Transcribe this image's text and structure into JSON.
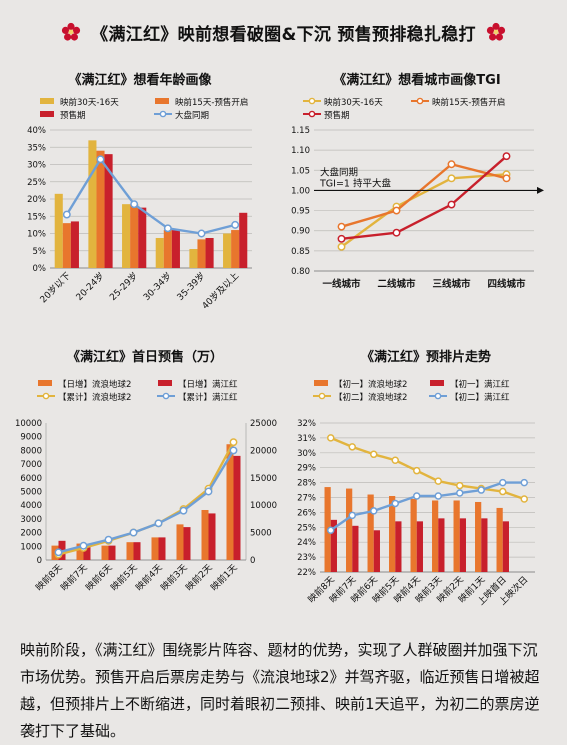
{
  "page": {
    "title": "《满江红》映前想看破圈&下沉 预售预排稳扎稳打",
    "paragraph": "映前阶段，《满江红》围绕影片阵容、题材的优势，实现了人群破圈并加强下沉市场优势。预售开启后票房走势与《流浪地球2》并驾齐驱，临近预售日增被超越，但预排片上不断缩进，同时着眼初二预排、映前1天追平，为初二的票房逆袭打下了基础。",
    "colors": {
      "accent_red": "#c8102e",
      "red": "#c8202c",
      "orange": "#e8762d",
      "yellow": "#e2b43e",
      "blue": "#6f9fd6",
      "bg": "#e9e7e5"
    }
  },
  "chart_data": [
    {
      "id": "age",
      "type": "bar",
      "title": "《满江红》想看年龄画像",
      "categories": [
        "20岁以下",
        "20-24岁",
        "25-29岁",
        "30-34岁",
        "35-39岁",
        "40岁及以上"
      ],
      "series": [
        {
          "name": "映前30天-16天",
          "kind": "bar",
          "color": "#e2b43e",
          "values": [
            21.5,
            37,
            18.5,
            8.7,
            5.5,
            10
          ]
        },
        {
          "name": "映前15天-预售开启",
          "kind": "bar",
          "color": "#e8762d",
          "values": [
            13,
            34,
            18.5,
            11,
            8.3,
            11
          ]
        },
        {
          "name": "预售期",
          "kind": "bar",
          "color": "#c8202c",
          "values": [
            13.5,
            33,
            17.5,
            11,
            8.7,
            16
          ]
        },
        {
          "name": "大盘同期",
          "kind": "line",
          "color": "#6f9fd6",
          "values": [
            15.5,
            31.5,
            18.5,
            11.5,
            10,
            12.5
          ]
        }
      ],
      "ylim": [
        0,
        40
      ],
      "yticks": [
        "0%",
        "5%",
        "10%",
        "15%",
        "20%",
        "25%",
        "30%",
        "35%",
        "40%"
      ],
      "grid": true,
      "legend": "top"
    },
    {
      "id": "tgi",
      "type": "line",
      "title": "《满江红》想看城市画像TGI",
      "categories": [
        "一线城市",
        "二线城市",
        "三线城市",
        "四线城市"
      ],
      "series": [
        {
          "name": "映前30天-16天",
          "color": "#e2b43e",
          "values": [
            0.86,
            0.96,
            1.03,
            1.04
          ]
        },
        {
          "name": "映前15天-预售开启",
          "color": "#e8762d",
          "values": [
            0.91,
            0.95,
            1.065,
            1.03
          ]
        },
        {
          "name": "预售期",
          "color": "#c8202c",
          "values": [
            0.88,
            0.895,
            0.965,
            1.085
          ]
        }
      ],
      "ylim": [
        0.8,
        1.15
      ],
      "yticks": [
        "0.80",
        "0.85",
        "0.90",
        "0.95",
        "1.00",
        "1.05",
        "1.10",
        "1.15"
      ],
      "annotation": [
        "大盘同期",
        "TGI=1 持平大盘"
      ],
      "grid": true,
      "legend": "top"
    },
    {
      "id": "presale",
      "type": "bar",
      "title": "《满江红》首日预售（万）",
      "categories": [
        "映前8天",
        "映前7天",
        "映前6天",
        "映前5天",
        "映前4天",
        "映前3天",
        "映前2天",
        "映前1天"
      ],
      "series": [
        {
          "name": "【日增】流浪地球2",
          "kind": "bar",
          "axis": "left",
          "color": "#e8762d",
          "values": [
            1050,
            1200,
            1050,
            1300,
            1650,
            2600,
            3650,
            8450
          ]
        },
        {
          "name": "【日增】满江红",
          "kind": "bar",
          "axis": "left",
          "color": "#c8202c",
          "values": [
            1400,
            1150,
            1050,
            1300,
            1650,
            2400,
            3400,
            7600
          ]
        },
        {
          "name": "【累计】流浪地球2",
          "kind": "line",
          "axis": "right",
          "color": "#e2b43e",
          "values": [
            1000,
            2200,
            3500,
            5000,
            6700,
            9300,
            13000,
            21500
          ]
        },
        {
          "name": "【累计】满江红",
          "kind": "line",
          "axis": "right",
          "color": "#6f9fd6",
          "values": [
            1400,
            2600,
            3700,
            5000,
            6700,
            9000,
            12500,
            20000
          ]
        }
      ],
      "ylim": [
        0,
        10000
      ],
      "y2lim": [
        0,
        25000
      ],
      "yticks": [
        "0",
        "1000",
        "2000",
        "3000",
        "4000",
        "5000",
        "6000",
        "7000",
        "8000",
        "9000",
        "10000"
      ],
      "y2ticks": [
        "0",
        "5000",
        "10000",
        "15000",
        "20000",
        "25000"
      ],
      "grid": false,
      "legend": "top"
    },
    {
      "id": "schedule",
      "type": "bar",
      "title": "《满江红》预排片走势",
      "categories": [
        "映前8天",
        "映前7天",
        "映前6天",
        "映前5天",
        "映前4天",
        "映前3天",
        "映前2天",
        "映前1天",
        "上映首日",
        "上映次日"
      ],
      "series": [
        {
          "name": "【初一】流浪地球2",
          "kind": "bar",
          "color": "#e8762d",
          "values": [
            27.7,
            27.6,
            27.2,
            27.1,
            26.9,
            26.8,
            26.8,
            26.7,
            26.3,
            null
          ]
        },
        {
          "name": "【初一】满江红",
          "kind": "bar",
          "color": "#c8202c",
          "values": [
            25.5,
            25.1,
            24.8,
            25.4,
            25.4,
            25.6,
            25.6,
            25.6,
            25.4,
            null
          ]
        },
        {
          "name": "【初二】流浪地球2",
          "kind": "line",
          "color": "#e2b43e",
          "values": [
            31,
            30.4,
            29.9,
            29.5,
            28.8,
            28.1,
            27.8,
            27.6,
            27.4,
            26.9
          ]
        },
        {
          "name": "【初二】满江红",
          "kind": "line",
          "color": "#6f9fd6",
          "values": [
            24.8,
            25.8,
            26.1,
            26.6,
            27.1,
            27.1,
            27.3,
            27.5,
            28,
            28
          ]
        }
      ],
      "ylim": [
        22,
        32
      ],
      "yticks": [
        "22%",
        "23%",
        "24%",
        "25%",
        "26%",
        "27%",
        "28%",
        "29%",
        "30%",
        "31%",
        "32%"
      ],
      "grid": true,
      "legend": "top"
    }
  ]
}
